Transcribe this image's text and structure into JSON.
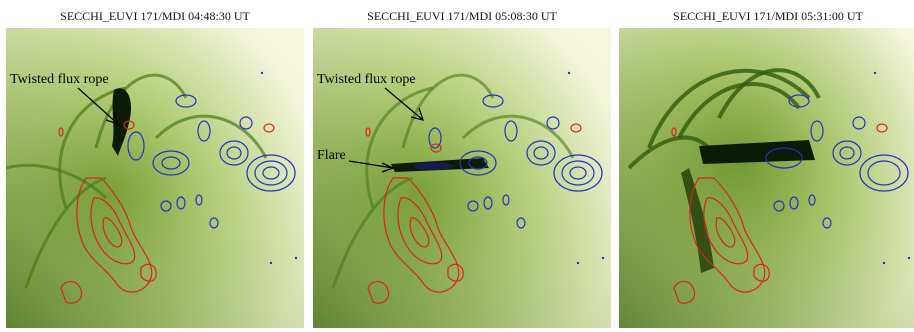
{
  "panels": [
    {
      "title": "SECCHI_EUVI 171/MDI 04:48:30 UT",
      "annotations": [
        "Twisted flux rope"
      ]
    },
    {
      "title": "SECCHI_EUVI 171/MDI 05:08:30 UT",
      "annotations": [
        "Twisted flux rope",
        "Flare"
      ]
    },
    {
      "title": "SECCHI_EUVI 171/MDI 05:31:00 UT",
      "annotations": []
    }
  ],
  "colors": {
    "background_light": "#f7f7e3",
    "emission_green": "#5b8a1c",
    "dark_core": "#0d1a05",
    "positive_contour": "#d8261c",
    "negative_contour": "#2230c8",
    "arrow": "#000000"
  }
}
